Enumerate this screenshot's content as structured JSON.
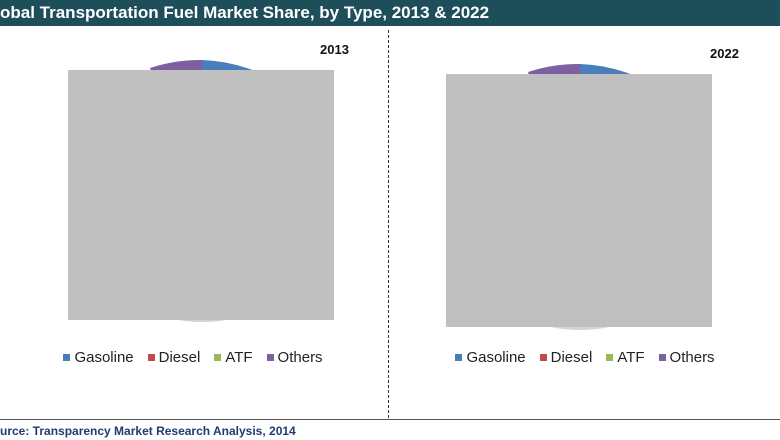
{
  "header": {
    "title": "obal Transportation Fuel Market Share, by Type, 2013 & 2022"
  },
  "colors": {
    "header_bg": "#1f4e5b",
    "gasoline": "#4a7ebb",
    "diesel": "#be4b48",
    "atf": "#98b954",
    "others": "#7d60a0",
    "overlay": "#c0c0c0"
  },
  "chart_data": [
    {
      "type": "pie",
      "title": "2013",
      "legend_position": "bottom",
      "series": [
        {
          "name": "Gasoline",
          "value": null
        },
        {
          "name": "Diesel",
          "value": null
        },
        {
          "name": "ATF",
          "value": null
        },
        {
          "name": "Others",
          "value": null
        }
      ],
      "note": ""
    },
    {
      "type": "pie",
      "title": "2022",
      "legend_position": "bottom",
      "series": [
        {
          "name": "Gasoline",
          "value": null
        },
        {
          "name": "Diesel",
          "value": null
        },
        {
          "name": "ATF",
          "value": null
        },
        {
          "name": "Others",
          "value": null
        }
      ]
    }
  ],
  "source": "urce: Transparency Market Research Analysis, 2014"
}
